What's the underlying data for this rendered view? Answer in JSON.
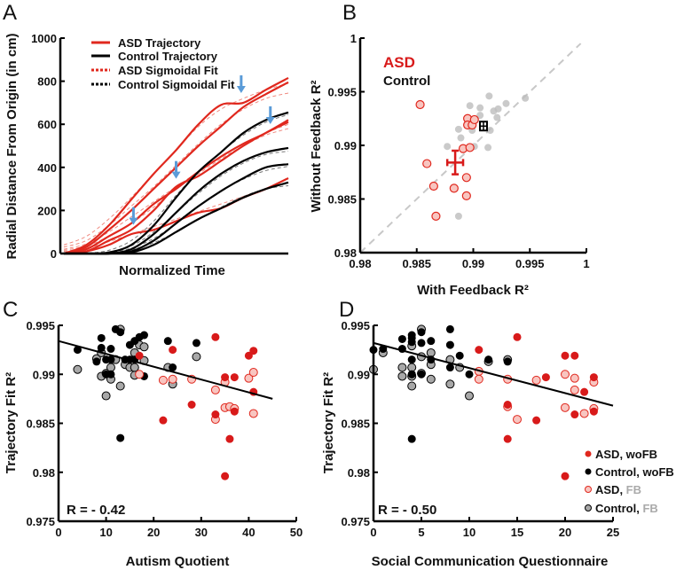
{
  "panels": {
    "a": "A",
    "b": "B",
    "c": "C",
    "d": "D"
  },
  "colors": {
    "asd": "#e0281e",
    "asd_fill_fb": "#f8c5c0",
    "control": "#000000",
    "control_fb": "#a8a8a8",
    "arrow": "#5a9bd8",
    "diag": "#c8c8c8"
  },
  "chart_data": [
    {
      "id": "A",
      "type": "line",
      "xlabel": "Normalized Time",
      "ylabel": "Radial Distance From Origin (in cm)",
      "ylim": [
        0,
        1000
      ],
      "yticks": [
        "0",
        "200",
        "400",
        "600",
        "800",
        "1000"
      ],
      "x": [
        0,
        0.1,
        0.2,
        0.3,
        0.4,
        0.5,
        0.6,
        0.7,
        0.8,
        0.9,
        1.0
      ],
      "legend": [
        "ASD Trajectory",
        "Control Trajectory",
        "ASD Sigmoidal Fit",
        "Control Sigmoidal Fit"
      ],
      "series": [
        {
          "group": "ASD",
          "traj": [
            0,
            40,
            130,
            250,
            370,
            480,
            600,
            690,
            700,
            760,
            815
          ],
          "fit": [
            40,
            80,
            160,
            260,
            370,
            480,
            590,
            670,
            720,
            760,
            790
          ]
        },
        {
          "group": "ASD",
          "traj": [
            0,
            30,
            110,
            200,
            300,
            400,
            500,
            590,
            680,
            740,
            795
          ],
          "fit": [
            30,
            60,
            130,
            220,
            310,
            410,
            510,
            600,
            670,
            720,
            745
          ]
        },
        {
          "group": "ASD",
          "traj": [
            0,
            20,
            80,
            140,
            230,
            300,
            380,
            450,
            510,
            560,
            620
          ],
          "fit": [
            20,
            45,
            100,
            170,
            240,
            310,
            380,
            450,
            510,
            560,
            600
          ]
        },
        {
          "group": "ASD",
          "traj": [
            0,
            10,
            60,
            110,
            200,
            310,
            360,
            430,
            500,
            560,
            610
          ],
          "fit": [
            15,
            35,
            80,
            140,
            215,
            300,
            370,
            440,
            500,
            550,
            580
          ]
        },
        {
          "group": "ASD",
          "traj": [
            0,
            10,
            40,
            90,
            110,
            150,
            190,
            210,
            260,
            300,
            350
          ],
          "fit": [
            10,
            25,
            55,
            90,
            125,
            160,
            195,
            230,
            265,
            300,
            330
          ]
        },
        {
          "group": "Control",
          "traj": [
            0,
            0,
            5,
            40,
            130,
            260,
            380,
            470,
            560,
            620,
            655
          ],
          "fit": [
            0,
            2,
            15,
            60,
            150,
            270,
            380,
            470,
            550,
            610,
            645
          ]
        },
        {
          "group": "Control",
          "traj": [
            0,
            0,
            0,
            20,
            90,
            190,
            290,
            370,
            430,
            470,
            490
          ],
          "fit": [
            0,
            1,
            8,
            35,
            100,
            190,
            280,
            360,
            420,
            460,
            475
          ]
        },
        {
          "group": "Control",
          "traj": [
            0,
            0,
            0,
            10,
            60,
            140,
            220,
            290,
            350,
            400,
            415
          ],
          "fit": [
            0,
            1,
            5,
            25,
            70,
            140,
            220,
            290,
            345,
            385,
            405
          ]
        },
        {
          "group": "Control",
          "traj": [
            0,
            0,
            0,
            5,
            40,
            100,
            160,
            210,
            260,
            300,
            330
          ],
          "fit": [
            0,
            1,
            4,
            18,
            50,
            100,
            160,
            215,
            265,
            300,
            315
          ]
        }
      ],
      "arrows": [
        {
          "t": 0.31,
          "value": 133
        },
        {
          "t": 0.5,
          "value": 347
        },
        {
          "t": 0.79,
          "value": 745
        },
        {
          "t": 0.92,
          "value": 601
        }
      ]
    },
    {
      "id": "B",
      "type": "scatter",
      "xlabel": "With Feedback R²",
      "ylabel": "Without Feedback R²",
      "xlim": [
        0.98,
        1
      ],
      "ylim": [
        0.98,
        1
      ],
      "xticks": [
        "0.98",
        "0.985",
        "0.99",
        "0.995",
        "1"
      ],
      "yticks": [
        "0.98",
        "0.985",
        "0.99",
        "0.995",
        "1"
      ],
      "legend": [
        "ASD",
        "Control"
      ],
      "asd": [
        [
          0.9853,
          0.9938
        ],
        [
          0.9859,
          0.9883
        ],
        [
          0.9865,
          0.9862
        ],
        [
          0.9867,
          0.9834
        ],
        [
          0.9883,
          0.986
        ],
        [
          0.9894,
          0.9853
        ],
        [
          0.9894,
          0.987
        ],
        [
          0.9891,
          0.9897
        ],
        [
          0.9897,
          0.9898
        ],
        [
          0.9895,
          0.9925
        ],
        [
          0.9895,
          0.9919
        ],
        [
          0.9899,
          0.9919
        ],
        [
          0.9901,
          0.9924
        ]
      ],
      "control": [
        [
          0.9877,
          0.9899
        ],
        [
          0.9887,
          0.9915
        ],
        [
          0.9889,
          0.9907
        ],
        [
          0.9897,
          0.9937
        ],
        [
          0.9901,
          0.9899
        ],
        [
          0.9899,
          0.9914
        ],
        [
          0.9906,
          0.9935
        ],
        [
          0.9906,
          0.9928
        ],
        [
          0.9914,
          0.9946
        ],
        [
          0.9918,
          0.9932
        ],
        [
          0.9922,
          0.9934
        ],
        [
          0.9929,
          0.9939
        ],
        [
          0.9921,
          0.9926
        ],
        [
          0.9915,
          0.9914
        ],
        [
          0.9913,
          0.9898
        ],
        [
          0.9887,
          0.9834
        ],
        [
          0.9946,
          0.9944
        ]
      ],
      "asd_mean": {
        "x": 0.9884,
        "y": 0.9884,
        "xerr": 0.0007,
        "yerr": 0.0011
      },
      "control_mean": {
        "x": 0.9909,
        "y": 0.9918
      }
    },
    {
      "id": "C",
      "type": "scatter",
      "xlabel": "Autism Quotient",
      "ylabel": "Trajectory Fit R²",
      "xlim": [
        0,
        50
      ],
      "ylim": [
        0.975,
        0.995
      ],
      "xticks": [
        "0",
        "10",
        "20",
        "30",
        "40",
        "50"
      ],
      "yticks": [
        "0.975",
        "0.98",
        "0.985",
        "0.99",
        "0.995"
      ],
      "annotation": "R = - 0.42",
      "fit_line": [
        [
          0,
          0.9934
        ],
        [
          45,
          0.9875
        ]
      ],
      "control_wofb": [
        [
          4,
          0.9925
        ],
        [
          9,
          0.9937
        ],
        [
          9,
          0.9927
        ],
        [
          11,
          0.9926
        ],
        [
          12,
          0.9946
        ],
        [
          13,
          0.9943
        ],
        [
          10,
          0.9915
        ],
        [
          11,
          0.9915
        ],
        [
          8,
          0.9913
        ],
        [
          10,
          0.99
        ],
        [
          11,
          0.99
        ],
        [
          15,
          0.993
        ],
        [
          16,
          0.9934
        ],
        [
          17,
          0.9938
        ],
        [
          18,
          0.994
        ],
        [
          15,
          0.9915
        ],
        [
          16,
          0.9915
        ],
        [
          13,
          0.9835
        ],
        [
          18,
          0.9898
        ],
        [
          23,
          0.9934
        ],
        [
          24,
          0.9907
        ],
        [
          29,
          0.9932
        ],
        [
          14,
          0.9915
        ]
      ],
      "control_fb": [
        [
          4,
          0.9905
        ],
        [
          8,
          0.9916
        ],
        [
          9,
          0.9922
        ],
        [
          9,
          0.9898
        ],
        [
          10,
          0.9901
        ],
        [
          10,
          0.9878
        ],
        [
          11,
          0.9907
        ],
        [
          11,
          0.9895
        ],
        [
          12,
          0.9915
        ],
        [
          13,
          0.9888
        ],
        [
          13,
          0.9946
        ],
        [
          14,
          0.991
        ],
        [
          15,
          0.9907
        ],
        [
          16,
          0.9922
        ],
        [
          16,
          0.9907
        ],
        [
          16,
          0.9899
        ],
        [
          17,
          0.993
        ],
        [
          18,
          0.9928
        ],
        [
          18,
          0.9914
        ],
        [
          23,
          0.9907
        ],
        [
          24,
          0.989
        ],
        [
          29,
          0.9918
        ]
      ],
      "asd_wofb": [
        [
          17,
          0.9919
        ],
        [
          24,
          0.9925
        ],
        [
          22,
          0.9853
        ],
        [
          28,
          0.9869
        ],
        [
          33,
          0.9938
        ],
        [
          33,
          0.9859
        ],
        [
          35,
          0.9897
        ],
        [
          35,
          0.9796
        ],
        [
          36,
          0.9834
        ],
        [
          37,
          0.9897
        ],
        [
          37,
          0.9862
        ],
        [
          40,
          0.9919
        ],
        [
          41,
          0.9924
        ],
        [
          41,
          0.9882
        ]
      ],
      "asd_fb": [
        [
          17,
          0.99
        ],
        [
          22,
          0.9894
        ],
        [
          24,
          0.9895
        ],
        [
          28,
          0.9895
        ],
        [
          33,
          0.9884
        ],
        [
          33,
          0.9854
        ],
        [
          35,
          0.9892
        ],
        [
          35,
          0.9866
        ],
        [
          36,
          0.9867
        ],
        [
          37,
          0.9865
        ],
        [
          40,
          0.9896
        ],
        [
          41,
          0.9902
        ],
        [
          41,
          0.986
        ]
      ]
    },
    {
      "id": "D",
      "type": "scatter",
      "xlabel": "Social Communication Questionnaire",
      "ylabel": "Trajectory Fit R²",
      "xlim": [
        0,
        25
      ],
      "ylim": [
        0.975,
        0.995
      ],
      "xticks": [
        "0",
        "5",
        "10",
        "15",
        "20",
        "25"
      ],
      "yticks": [
        "0.975",
        "0.98",
        "0.985",
        "0.99",
        "0.995"
      ],
      "annotation": "R = - 0.50",
      "fit_line": [
        [
          0,
          0.9932
        ],
        [
          25,
          0.9868
        ]
      ],
      "legend": [
        {
          "label": "ASD, ",
          "suffix": "woFB"
        },
        {
          "label": "Control, ",
          "suffix": "woFB"
        },
        {
          "label": "ASD, ",
          "suffix": "FB"
        },
        {
          "label": "Control, ",
          "suffix": "FB"
        }
      ],
      "control_wofb": [
        [
          0,
          0.9925
        ],
        [
          1,
          0.9926
        ],
        [
          3,
          0.9936
        ],
        [
          3,
          0.9926
        ],
        [
          4,
          0.994
        ],
        [
          4,
          0.9937
        ],
        [
          4,
          0.9933
        ],
        [
          4,
          0.9915
        ],
        [
          4,
          0.99
        ],
        [
          4,
          0.99
        ],
        [
          5,
          0.9943
        ],
        [
          5,
          0.9932
        ],
        [
          5,
          0.99
        ],
        [
          6,
          0.9934
        ],
        [
          6,
          0.9915
        ],
        [
          8,
          0.9946
        ],
        [
          8,
          0.993
        ],
        [
          8,
          0.9907
        ],
        [
          9,
          0.9919
        ],
        [
          10,
          0.99
        ],
        [
          12,
          0.9915
        ],
        [
          14,
          0.9913
        ],
        [
          4,
          0.9834
        ]
      ],
      "control_fb": [
        [
          0,
          0.9905
        ],
        [
          1,
          0.9922
        ],
        [
          3,
          0.9907
        ],
        [
          3,
          0.9898
        ],
        [
          4,
          0.9929
        ],
        [
          4,
          0.9907
        ],
        [
          4,
          0.9898
        ],
        [
          4,
          0.9888
        ],
        [
          5,
          0.9946
        ],
        [
          5,
          0.9918
        ],
        [
          5,
          0.9901
        ],
        [
          6,
          0.9922
        ],
        [
          6,
          0.991
        ],
        [
          6,
          0.9895
        ],
        [
          8,
          0.9915
        ],
        [
          8,
          0.989
        ],
        [
          9,
          0.9907
        ],
        [
          10,
          0.9878
        ],
        [
          12,
          0.9913
        ],
        [
          14,
          0.9915
        ]
      ],
      "asd_wofb": [
        [
          11,
          0.9925
        ],
        [
          15,
          0.9938
        ],
        [
          14,
          0.9869
        ],
        [
          14,
          0.9834
        ],
        [
          17,
          0.9853
        ],
        [
          18,
          0.9897
        ],
        [
          20,
          0.9919
        ],
        [
          21,
          0.9919
        ],
        [
          20,
          0.9796
        ],
        [
          21,
          0.9859
        ],
        [
          22,
          0.9882
        ],
        [
          23,
          0.9897
        ],
        [
          23,
          0.9862
        ]
      ],
      "asd_fb": [
        [
          11,
          0.9903
        ],
        [
          11,
          0.9895
        ],
        [
          14,
          0.9895
        ],
        [
          14,
          0.9867
        ],
        [
          15,
          0.9854
        ],
        [
          17,
          0.9894
        ],
        [
          20,
          0.99
        ],
        [
          20,
          0.9866
        ],
        [
          21,
          0.9896
        ],
        [
          21,
          0.9884
        ],
        [
          22,
          0.986
        ],
        [
          23,
          0.9892
        ],
        [
          23,
          0.9865
        ]
      ]
    }
  ]
}
